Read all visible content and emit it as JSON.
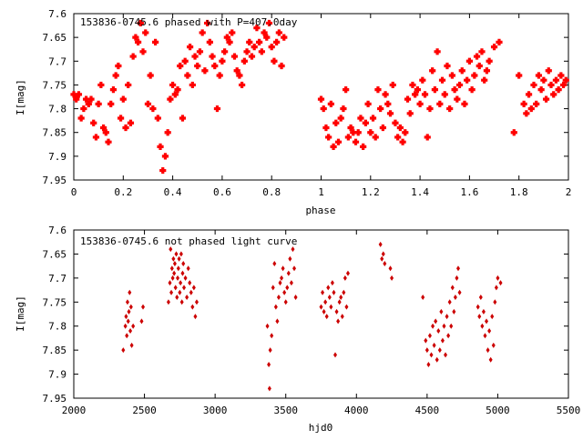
{
  "chart_data": [
    {
      "type": "scatter",
      "title": "153836-0745.6 phased with P=407.0day",
      "xlabel": "phase",
      "ylabel": "I[mag]",
      "xlim": [
        0,
        2
      ],
      "ylim": [
        7.6,
        7.95
      ],
      "y_inverted": true,
      "x_ticks": [
        "0",
        "0.2",
        "0.4",
        "0.6",
        "0.8",
        "1",
        "1.2",
        "1.4",
        "1.6",
        "1.8",
        "2"
      ],
      "y_ticks": [
        "7.6",
        "7.65",
        "7.7",
        "7.75",
        "7.8",
        "7.85",
        "7.9",
        "7.95"
      ],
      "marker_color": "#ff0000",
      "points": [
        [
          0.0,
          7.77
        ],
        [
          0.01,
          7.78
        ],
        [
          0.02,
          7.77
        ],
        [
          0.03,
          7.82
        ],
        [
          0.04,
          7.8
        ],
        [
          0.05,
          7.78
        ],
        [
          0.06,
          7.79
        ],
        [
          0.07,
          7.78
        ],
        [
          0.08,
          7.83
        ],
        [
          0.09,
          7.86
        ],
        [
          0.1,
          7.79
        ],
        [
          0.11,
          7.75
        ],
        [
          0.12,
          7.84
        ],
        [
          0.13,
          7.85
        ],
        [
          0.14,
          7.87
        ],
        [
          0.15,
          7.79
        ],
        [
          0.16,
          7.76
        ],
        [
          0.17,
          7.73
        ],
        [
          0.18,
          7.71
        ],
        [
          0.19,
          7.82
        ],
        [
          0.2,
          7.78
        ],
        [
          0.21,
          7.84
        ],
        [
          0.22,
          7.75
        ],
        [
          0.23,
          7.83
        ],
        [
          0.24,
          7.69
        ],
        [
          0.25,
          7.65
        ],
        [
          0.26,
          7.66
        ],
        [
          0.27,
          7.62
        ],
        [
          0.28,
          7.68
        ],
        [
          0.29,
          7.64
        ],
        [
          0.3,
          7.79
        ],
        [
          0.31,
          7.73
        ],
        [
          0.32,
          7.8
        ],
        [
          0.33,
          7.66
        ],
        [
          0.34,
          7.82
        ],
        [
          0.35,
          7.88
        ],
        [
          0.36,
          7.93
        ],
        [
          0.37,
          7.9
        ],
        [
          0.38,
          7.85
        ],
        [
          0.39,
          7.78
        ],
        [
          0.4,
          7.75
        ],
        [
          0.41,
          7.77
        ],
        [
          0.42,
          7.76
        ],
        [
          0.43,
          7.71
        ],
        [
          0.44,
          7.82
        ],
        [
          0.45,
          7.7
        ],
        [
          0.46,
          7.73
        ],
        [
          0.47,
          7.67
        ],
        [
          0.48,
          7.75
        ],
        [
          0.49,
          7.69
        ],
        [
          0.5,
          7.71
        ],
        [
          0.51,
          7.68
        ],
        [
          0.52,
          7.64
        ],
        [
          0.53,
          7.72
        ],
        [
          0.54,
          7.62
        ],
        [
          0.55,
          7.66
        ],
        [
          0.56,
          7.69
        ],
        [
          0.57,
          7.71
        ],
        [
          0.58,
          7.8
        ],
        [
          0.59,
          7.73
        ],
        [
          0.6,
          7.7
        ],
        [
          0.61,
          7.68
        ],
        [
          0.62,
          7.65
        ],
        [
          0.63,
          7.66
        ],
        [
          0.64,
          7.64
        ],
        [
          0.65,
          7.69
        ],
        [
          0.66,
          7.72
        ],
        [
          0.67,
          7.73
        ],
        [
          0.68,
          7.75
        ],
        [
          0.69,
          7.7
        ],
        [
          0.7,
          7.68
        ],
        [
          0.71,
          7.66
        ],
        [
          0.72,
          7.69
        ],
        [
          0.73,
          7.67
        ],
        [
          0.74,
          7.63
        ],
        [
          0.75,
          7.66
        ],
        [
          0.76,
          7.68
        ],
        [
          0.77,
          7.64
        ],
        [
          0.78,
          7.65
        ],
        [
          0.79,
          7.62
        ],
        [
          0.8,
          7.67
        ],
        [
          0.81,
          7.7
        ],
        [
          0.82,
          7.66
        ],
        [
          0.83,
          7.64
        ],
        [
          0.84,
          7.71
        ],
        [
          0.85,
          7.65
        ],
        [
          1.0,
          7.78
        ],
        [
          1.01,
          7.8
        ],
        [
          1.02,
          7.84
        ],
        [
          1.03,
          7.86
        ],
        [
          1.04,
          7.79
        ],
        [
          1.05,
          7.88
        ],
        [
          1.06,
          7.83
        ],
        [
          1.07,
          7.87
        ],
        [
          1.08,
          7.82
        ],
        [
          1.09,
          7.8
        ],
        [
          1.1,
          7.76
        ],
        [
          1.11,
          7.86
        ],
        [
          1.12,
          7.84
        ],
        [
          1.13,
          7.85
        ],
        [
          1.14,
          7.87
        ],
        [
          1.15,
          7.85
        ],
        [
          1.16,
          7.82
        ],
        [
          1.17,
          7.88
        ],
        [
          1.18,
          7.83
        ],
        [
          1.19,
          7.79
        ],
        [
          1.2,
          7.85
        ],
        [
          1.21,
          7.82
        ],
        [
          1.22,
          7.86
        ],
        [
          1.23,
          7.76
        ],
        [
          1.24,
          7.8
        ],
        [
          1.25,
          7.84
        ],
        [
          1.26,
          7.77
        ],
        [
          1.27,
          7.79
        ],
        [
          1.28,
          7.81
        ],
        [
          1.29,
          7.75
        ],
        [
          1.3,
          7.83
        ],
        [
          1.31,
          7.86
        ],
        [
          1.32,
          7.84
        ],
        [
          1.33,
          7.87
        ],
        [
          1.34,
          7.85
        ],
        [
          1.35,
          7.78
        ],
        [
          1.36,
          7.81
        ],
        [
          1.37,
          7.75
        ],
        [
          1.38,
          7.77
        ],
        [
          1.39,
          7.76
        ],
        [
          1.4,
          7.79
        ],
        [
          1.41,
          7.74
        ],
        [
          1.42,
          7.77
        ],
        [
          1.43,
          7.86
        ],
        [
          1.44,
          7.8
        ],
        [
          1.45,
          7.72
        ],
        [
          1.46,
          7.76
        ],
        [
          1.47,
          7.68
        ],
        [
          1.48,
          7.79
        ],
        [
          1.49,
          7.74
        ],
        [
          1.5,
          7.77
        ],
        [
          1.51,
          7.71
        ],
        [
          1.52,
          7.8
        ],
        [
          1.53,
          7.73
        ],
        [
          1.54,
          7.76
        ],
        [
          1.55,
          7.78
        ],
        [
          1.56,
          7.75
        ],
        [
          1.57,
          7.72
        ],
        [
          1.58,
          7.79
        ],
        [
          1.59,
          7.74
        ],
        [
          1.6,
          7.7
        ],
        [
          1.61,
          7.76
        ],
        [
          1.62,
          7.73
        ],
        [
          1.63,
          7.69
        ],
        [
          1.64,
          7.71
        ],
        [
          1.65,
          7.68
        ],
        [
          1.66,
          7.74
        ],
        [
          1.67,
          7.72
        ],
        [
          1.68,
          7.7
        ],
        [
          1.7,
          7.67
        ],
        [
          1.72,
          7.66
        ],
        [
          1.78,
          7.85
        ],
        [
          1.8,
          7.73
        ],
        [
          1.82,
          7.79
        ],
        [
          1.83,
          7.81
        ],
        [
          1.84,
          7.77
        ],
        [
          1.85,
          7.8
        ],
        [
          1.86,
          7.75
        ],
        [
          1.87,
          7.79
        ],
        [
          1.88,
          7.73
        ],
        [
          1.89,
          7.76
        ],
        [
          1.9,
          7.74
        ],
        [
          1.91,
          7.78
        ],
        [
          1.92,
          7.72
        ],
        [
          1.93,
          7.75
        ],
        [
          1.94,
          7.77
        ],
        [
          1.95,
          7.74
        ],
        [
          1.96,
          7.76
        ],
        [
          1.97,
          7.73
        ],
        [
          1.98,
          7.75
        ],
        [
          1.99,
          7.74
        ]
      ]
    },
    {
      "type": "scatter",
      "title": "153836-0745.6 not phased light curve",
      "xlabel": "hjd0",
      "ylabel": "I[mag]",
      "xlim": [
        2000,
        5500
      ],
      "ylim": [
        7.6,
        7.95
      ],
      "y_inverted": true,
      "x_ticks": [
        "2000",
        "2500",
        "3000",
        "3500",
        "4000",
        "4500",
        "5000",
        "5500"
      ],
      "y_ticks": [
        "7.6",
        "7.65",
        "7.7",
        "7.75",
        "7.8",
        "7.85",
        "7.9",
        "7.95"
      ],
      "marker_color": "#cc0000",
      "points": [
        [
          2350,
          7.85
        ],
        [
          2365,
          7.8
        ],
        [
          2370,
          7.78
        ],
        [
          2375,
          7.82
        ],
        [
          2380,
          7.75
        ],
        [
          2385,
          7.79
        ],
        [
          2390,
          7.77
        ],
        [
          2395,
          7.73
        ],
        [
          2400,
          7.81
        ],
        [
          2405,
          7.76
        ],
        [
          2410,
          7.84
        ],
        [
          2420,
          7.8
        ],
        [
          2480,
          7.79
        ],
        [
          2490,
          7.76
        ],
        [
          2670,
          7.75
        ],
        [
          2680,
          7.71
        ],
        [
          2685,
          7.64
        ],
        [
          2690,
          7.73
        ],
        [
          2695,
          7.68
        ],
        [
          2700,
          7.7
        ],
        [
          2705,
          7.66
        ],
        [
          2710,
          7.69
        ],
        [
          2715,
          7.67
        ],
        [
          2720,
          7.72
        ],
        [
          2725,
          7.65
        ],
        [
          2730,
          7.74
        ],
        [
          2735,
          7.7
        ],
        [
          2740,
          7.68
        ],
        [
          2745,
          7.66
        ],
        [
          2750,
          7.73
        ],
        [
          2755,
          7.71
        ],
        [
          2760,
          7.65
        ],
        [
          2765,
          7.75
        ],
        [
          2770,
          7.69
        ],
        [
          2775,
          7.67
        ],
        [
          2780,
          7.72
        ],
        [
          2790,
          7.7
        ],
        [
          2800,
          7.74
        ],
        [
          2810,
          7.68
        ],
        [
          2820,
          7.71
        ],
        [
          2830,
          7.73
        ],
        [
          2840,
          7.76
        ],
        [
          2850,
          7.72
        ],
        [
          2860,
          7.78
        ],
        [
          2870,
          7.75
        ],
        [
          3370,
          7.8
        ],
        [
          3380,
          7.88
        ],
        [
          3385,
          7.93
        ],
        [
          3390,
          7.85
        ],
        [
          3400,
          7.82
        ],
        [
          3410,
          7.72
        ],
        [
          3420,
          7.67
        ],
        [
          3430,
          7.76
        ],
        [
          3440,
          7.79
        ],
        [
          3450,
          7.74
        ],
        [
          3460,
          7.71
        ],
        [
          3470,
          7.7
        ],
        [
          3480,
          7.68
        ],
        [
          3490,
          7.73
        ],
        [
          3500,
          7.75
        ],
        [
          3510,
          7.72
        ],
        [
          3520,
          7.69
        ],
        [
          3530,
          7.66
        ],
        [
          3540,
          7.71
        ],
        [
          3550,
          7.64
        ],
        [
          3560,
          7.68
        ],
        [
          3570,
          7.74
        ],
        [
          3750,
          7.76
        ],
        [
          3760,
          7.73
        ],
        [
          3770,
          7.77
        ],
        [
          3780,
          7.75
        ],
        [
          3790,
          7.78
        ],
        [
          3800,
          7.72
        ],
        [
          3810,
          7.74
        ],
        [
          3820,
          7.76
        ],
        [
          3830,
          7.71
        ],
        [
          3840,
          7.73
        ],
        [
          3850,
          7.86
        ],
        [
          3860,
          7.77
        ],
        [
          3870,
          7.79
        ],
        [
          3880,
          7.75
        ],
        [
          3890,
          7.74
        ],
        [
          3900,
          7.78
        ],
        [
          3910,
          7.73
        ],
        [
          3920,
          7.7
        ],
        [
          3930,
          7.76
        ],
        [
          3940,
          7.69
        ],
        [
          4170,
          7.63
        ],
        [
          4180,
          7.66
        ],
        [
          4190,
          7.65
        ],
        [
          4200,
          7.67
        ],
        [
          4240,
          7.68
        ],
        [
          4250,
          7.7
        ],
        [
          4470,
          7.74
        ],
        [
          4490,
          7.83
        ],
        [
          4500,
          7.85
        ],
        [
          4510,
          7.88
        ],
        [
          4520,
          7.82
        ],
        [
          4530,
          7.86
        ],
        [
          4540,
          7.8
        ],
        [
          4550,
          7.84
        ],
        [
          4560,
          7.79
        ],
        [
          4570,
          7.87
        ],
        [
          4580,
          7.81
        ],
        [
          4590,
          7.85
        ],
        [
          4600,
          7.77
        ],
        [
          4610,
          7.83
        ],
        [
          4620,
          7.8
        ],
        [
          4630,
          7.86
        ],
        [
          4640,
          7.78
        ],
        [
          4650,
          7.82
        ],
        [
          4660,
          7.75
        ],
        [
          4670,
          7.8
        ],
        [
          4680,
          7.72
        ],
        [
          4690,
          7.77
        ],
        [
          4700,
          7.74
        ],
        [
          4710,
          7.7
        ],
        [
          4720,
          7.68
        ],
        [
          4730,
          7.73
        ],
        [
          4860,
          7.76
        ],
        [
          4870,
          7.78
        ],
        [
          4880,
          7.74
        ],
        [
          4890,
          7.8
        ],
        [
          4900,
          7.77
        ],
        [
          4910,
          7.82
        ],
        [
          4920,
          7.79
        ],
        [
          4930,
          7.85
        ],
        [
          4940,
          7.81
        ],
        [
          4950,
          7.87
        ],
        [
          4960,
          7.78
        ],
        [
          4970,
          7.84
        ],
        [
          4980,
          7.75
        ],
        [
          4990,
          7.72
        ],
        [
          5000,
          7.7
        ],
        [
          5020,
          7.71
        ]
      ]
    }
  ]
}
